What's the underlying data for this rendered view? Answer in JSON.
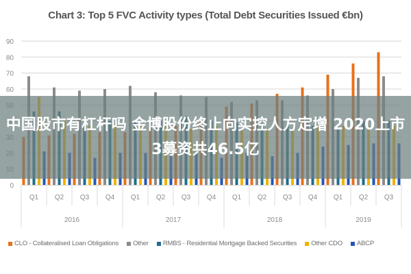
{
  "title": "Chart 3: Top 5 FVC Activity types (Total Debt Securities Issued €bn)",
  "overlay": {
    "headline": "中国股市有杠杆吗 金博股份终止向实控人方定增 2020上市3募资共46.5亿"
  },
  "legend": [
    {
      "label": "CLO - Collateralised Loan Obligations",
      "color": "#e8711a"
    },
    {
      "label": "Other",
      "color": "#8c8c8c"
    },
    {
      "label": "RMBS - Residential Mortgage Backed Securities",
      "color": "#1f6e8c"
    },
    {
      "label": "Other CDO",
      "color": "#f2b300"
    },
    {
      "label": "ABCP",
      "color": "#2456b5"
    }
  ],
  "chart_data": {
    "type": "bar",
    "title": "Chart 3: Top 5 FVC Activity types (Total Debt Securities Issued €bn)",
    "xlabel": "",
    "ylabel": "",
    "ylim": [
      0,
      90
    ],
    "yticks": [
      0,
      10,
      20,
      30,
      40,
      50,
      60,
      70,
      80,
      90
    ],
    "grid": true,
    "legend_position": "bottom",
    "categories": [
      "2016 Q1",
      "2016 Q2",
      "2016 Q3",
      "2016 Q4",
      "2017 Q1",
      "2017 Q2",
      "2017 Q3",
      "2017 Q4",
      "2018 Q1",
      "2018 Q2",
      "2018 Q3",
      "2018 Q4",
      "2019 Q1",
      "2019 Q2",
      "2019 Q3"
    ],
    "quarter_labels": [
      "Q1",
      "Q2",
      "Q3",
      "Q4",
      "Q1",
      "Q2",
      "Q3",
      "Q4",
      "Q1",
      "Q2",
      "Q3",
      "Q4",
      "Q1",
      "Q2",
      "Q3"
    ],
    "year_groups": [
      {
        "label": "2016",
        "span": 4
      },
      {
        "label": "2017",
        "span": 4
      },
      {
        "label": "2018",
        "span": 4
      },
      {
        "label": "2019",
        "span": 3
      }
    ],
    "series": [
      {
        "name": "CLO - Collateralised Loan Obligations",
        "color": "#e8711a",
        "values": [
          30,
          31,
          32,
          33,
          33,
          36,
          37,
          40,
          49,
          51,
          57,
          61,
          69,
          76,
          83
        ]
      },
      {
        "name": "Other",
        "color": "#8c8c8c",
        "values": [
          68,
          61,
          59,
          60,
          62,
          58,
          56,
          55,
          52,
          53,
          53,
          56,
          60,
          67,
          68
        ]
      },
      {
        "name": "RMBS - Residential Mortgage Backed Securities",
        "color": "#1f6e8c",
        "values": [
          46,
          46,
          40,
          40,
          40,
          40,
          43,
          40,
          39,
          38,
          37,
          37,
          37,
          40,
          40
        ]
      },
      {
        "name": "Other CDO",
        "color": "#f2b300",
        "values": [
          55,
          41,
          37,
          37,
          37,
          37,
          35,
          37,
          34,
          34,
          35,
          37,
          37,
          37,
          37
        ]
      },
      {
        "name": "ABCP",
        "color": "#2456b5",
        "values": [
          21,
          20,
          17,
          20,
          20,
          18,
          20,
          17,
          20,
          18,
          20,
          24,
          25,
          26,
          26
        ]
      }
    ]
  }
}
